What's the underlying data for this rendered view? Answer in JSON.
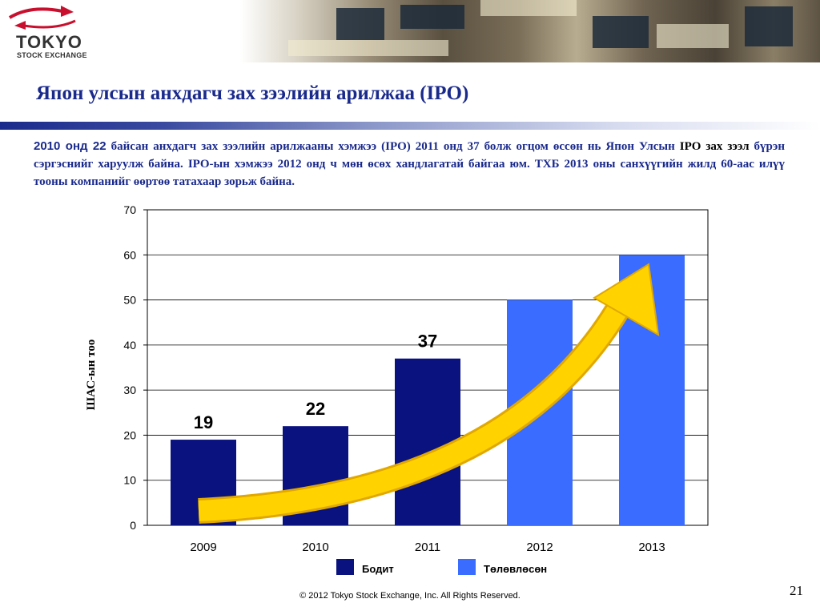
{
  "header": {
    "logo_main": "TOKYO",
    "logo_sub": "STOCK EXCHANGE"
  },
  "slide": {
    "title": "Япон улсын анхдагч зах зээлийн арилжаа (IPO)",
    "desc_lead": "2010 онд 22",
    "desc_part1": " байсан анхдагч зах зээлийн арилжааны хэмжээ (IPO) 2011 онд 37 болж огцом өссөн нь Япон Улсын ",
    "desc_highlight": "IPO зах зээл",
    "desc_part2": " бүрэн сэргэснийг харуулж байна. IPO-ын хэмжээ 2012 онд ч мөн өсөх хандлагатай байгаа юм. ТХБ 2013 оны санхүүгийн жилд 60-аас илүү тооны компанийг өөртөө татахаар зорьж байна.",
    "copyright": "© 2012 Tokyo Stock Exchange, Inc. All Rights Reserved.",
    "page_number": "21"
  },
  "chart_data": {
    "type": "bar",
    "categories": [
      "2009",
      "2010",
      "2011",
      "2012",
      "2013"
    ],
    "values": [
      19,
      22,
      37,
      50,
      60
    ],
    "status": [
      "actual",
      "actual",
      "actual",
      "planned",
      "planned"
    ],
    "data_labels": [
      "19",
      "22",
      "37",
      "",
      ""
    ],
    "ylabel": "ШАС-ын тоо",
    "ylim": [
      0,
      70
    ],
    "yticks": [
      0,
      10,
      20,
      30,
      40,
      50,
      60,
      70
    ],
    "grid": true,
    "legend": [
      {
        "name": "Бодит",
        "color": "#0a1280"
      },
      {
        "name": "Төлөвлөсөн",
        "color": "#3a6cff"
      }
    ],
    "colors": {
      "actual": "#0a1280",
      "planned": "#3a6cff",
      "arrow": "#ffd200",
      "arrow_edge": "#e0a800"
    },
    "legend_position": "bottom"
  }
}
